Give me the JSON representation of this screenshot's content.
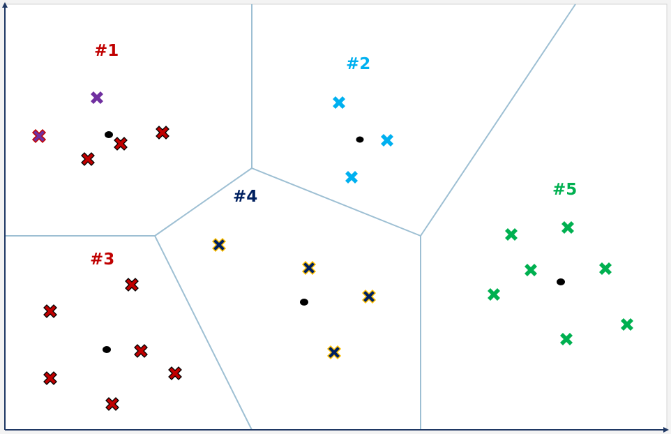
{
  "regions": [
    {
      "label": "#1",
      "color": "#c00000"
    },
    {
      "label": "#2",
      "color": "#00b0f0"
    },
    {
      "label": "#3",
      "color": "#c00000"
    },
    {
      "label": "#4",
      "color": "#002060"
    },
    {
      "label": "#5",
      "color": "#00b050"
    }
  ],
  "styles": {
    "background": "#ffffff",
    "boundary_color": "#9dbfd3",
    "axis_color": "#1f3864",
    "centroid_color": "#000000",
    "marker_dark_red": "#c00000",
    "marker_purple": "#7030a0",
    "marker_sky": "#00b0f0",
    "marker_navy": "#002060",
    "marker_navy_outline": "#ffc000",
    "marker_green": "#00b050"
  },
  "icons": {
    "data_point": "x-cross-marker",
    "centroid": "filled-ellipse",
    "axis_tip": "arrowhead"
  }
}
